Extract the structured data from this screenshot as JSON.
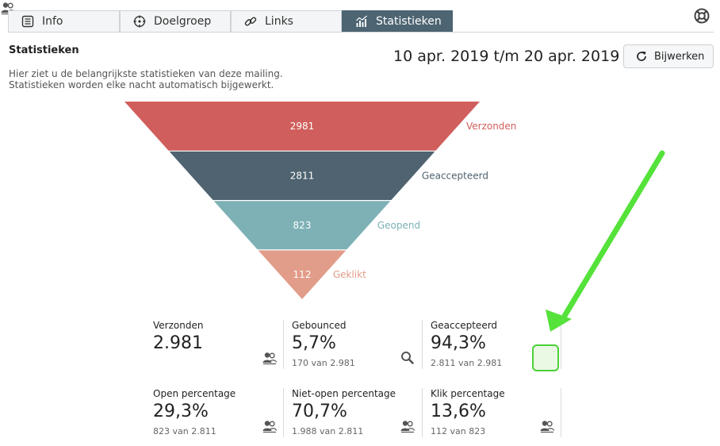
{
  "tabs": [
    {
      "label": "Info",
      "icon": "list-icon",
      "active": false
    },
    {
      "label": "Doelgroep",
      "icon": "crosshair-icon",
      "active": false
    },
    {
      "label": "Links",
      "icon": "link-icon",
      "active": false
    },
    {
      "label": "Statistieken",
      "icon": "bar-chart-icon",
      "active": true
    }
  ],
  "help_icon": "lifebuoy-icon",
  "header": {
    "title": "Statistieken",
    "description_line1": "Hier ziet u de belangrijkste statistieken van deze mailing.",
    "description_line2": "Statistieken worden elke nacht automatisch bijgewerkt.",
    "date_range": "10 apr. 2019 t/m 20 apr. 2019",
    "refresh_label": "Bijwerken",
    "refresh_icon": "refresh-icon"
  },
  "chart_data": {
    "type": "funnel",
    "stages": [
      {
        "name": "Verzonden",
        "value": 2981,
        "label": "2981",
        "color": "#d05e5c"
      },
      {
        "name": "Geaccepteerd",
        "value": 2811,
        "label": "2811",
        "color": "#4f6370"
      },
      {
        "name": "Geopend",
        "value": 823,
        "label": "823",
        "color": "#7db1b6"
      },
      {
        "name": "Geklikt",
        "value": 112,
        "label": "112",
        "color": "#e29c8a"
      }
    ]
  },
  "stats": [
    {
      "label": "Verzonden",
      "value": "2.981",
      "sub": "",
      "icon": "users-icon"
    },
    {
      "label": "Gebounced",
      "value": "5,7%",
      "sub": "170 van 2.981",
      "icon": "search-icon"
    },
    {
      "label": "Geaccepteerd",
      "value": "94,3%",
      "sub": "2.811 van 2.981",
      "icon": "users-icon"
    },
    {
      "label": "Open percentage",
      "value": "29,3%",
      "sub": "823 van 2.811",
      "icon": "users-icon"
    },
    {
      "label": "Niet-open percentage",
      "value": "70,7%",
      "sub": "1.988 van 2.811",
      "icon": "users-icon"
    },
    {
      "label": "Klik percentage",
      "value": "13,6%",
      "sub": "112 van 823",
      "icon": "users-icon"
    }
  ],
  "annotation": {
    "arrow_color": "#55e23a"
  }
}
